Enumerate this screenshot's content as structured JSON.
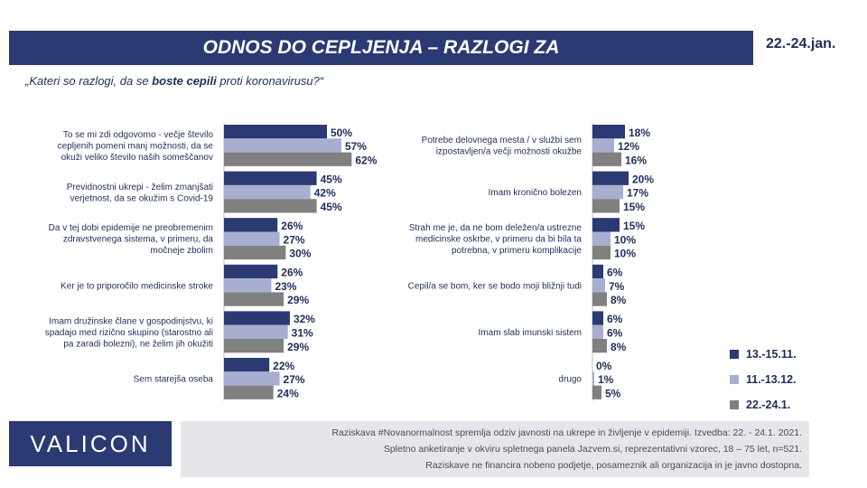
{
  "header": {
    "title": "ODNOS DO CEPLJENJA – RAZLOGI ZA",
    "date": "22.-24.jan."
  },
  "question": {
    "before": "„Kateri so razlogi, da se ",
    "bold": "boste cepili",
    "after": " proti koronavirusu?“"
  },
  "colors": {
    "banner": "#2b3a72",
    "series": [
      "#2b3a72",
      "#a7aed0",
      "#808080"
    ]
  },
  "chart_data": {
    "type": "bar",
    "orientation": "horizontal",
    "series": [
      {
        "name": "13.-15.11."
      },
      {
        "name": "11.-13.12."
      },
      {
        "name": "22.-24.1."
      }
    ],
    "panels": [
      {
        "categories": [
          {
            "lines": [
              "To se mi zdi odgovorno - večje število",
              "cepljenih pomeni manj možnosti, da se",
              "okuži veliko število naših someščanov"
            ],
            "values": [
              50,
              57,
              62
            ]
          },
          {
            "lines": [
              "Previdnostni ukrepi - želim zmanjšati",
              "verjetnost, da se okužim s Covid-19"
            ],
            "values": [
              45,
              42,
              45
            ]
          },
          {
            "lines": [
              "Da v tej dobi epidemije ne preobremenim",
              "zdravstvenega sistema, v primeru, da",
              "močneje zbolim"
            ],
            "values": [
              26,
              27,
              30
            ]
          },
          {
            "lines": [
              "Ker je to priporočilo medicinske stroke"
            ],
            "values": [
              26,
              23,
              29
            ]
          },
          {
            "lines": [
              "Imam družinske člane v gospodinjstvu, ki",
              "spadajo med rizično skupino (starostno ali",
              "pa zaradi bolezni), ne želim jih okužiti"
            ],
            "values": [
              32,
              31,
              29
            ]
          },
          {
            "lines": [
              "Sem starejša oseba"
            ],
            "values": [
              22,
              27,
              24
            ]
          }
        ]
      },
      {
        "categories": [
          {
            "lines": [
              "Potrebe delovnega mesta / v službi sem",
              "izpostavljen/a večji možnosti okužbe"
            ],
            "values": [
              18,
              12,
              16
            ]
          },
          {
            "lines": [
              "Imam kronično bolezen"
            ],
            "values": [
              20,
              17,
              15
            ]
          },
          {
            "lines": [
              "Strah me je, da ne bom deležen/a ustrezne",
              "medicinske oskrbe, v primeru da bi bila ta",
              "potrebna, v primeru komplikacije"
            ],
            "values": [
              15,
              10,
              10
            ]
          },
          {
            "lines": [
              "Cepil/a se bom, ker se bodo moji bližnji tudi"
            ],
            "values": [
              6,
              7,
              8
            ]
          },
          {
            "lines": [
              "Imam slab imunski sistem"
            ],
            "values": [
              6,
              6,
              8
            ]
          },
          {
            "lines": [
              "drugo"
            ],
            "values": [
              0,
              1,
              5
            ]
          }
        ]
      }
    ],
    "value_suffix": "%"
  },
  "logo": "VALICON",
  "footer": {
    "line1": "Raziskava #Novanormalnost spremlja odziv javnosti na ukrepe in življenje v epidemiji. Izvedba: 22. - 24.1. 2021.",
    "line2": "Spletno anketiranje v okviru spletnega panela Jazvem.si, reprezentativni vzorec, 18 – 75 let, n=521.",
    "line3": "Raziskave ne financira nobeno podjetje, posameznik ali organizacija in je javno dostopna."
  }
}
